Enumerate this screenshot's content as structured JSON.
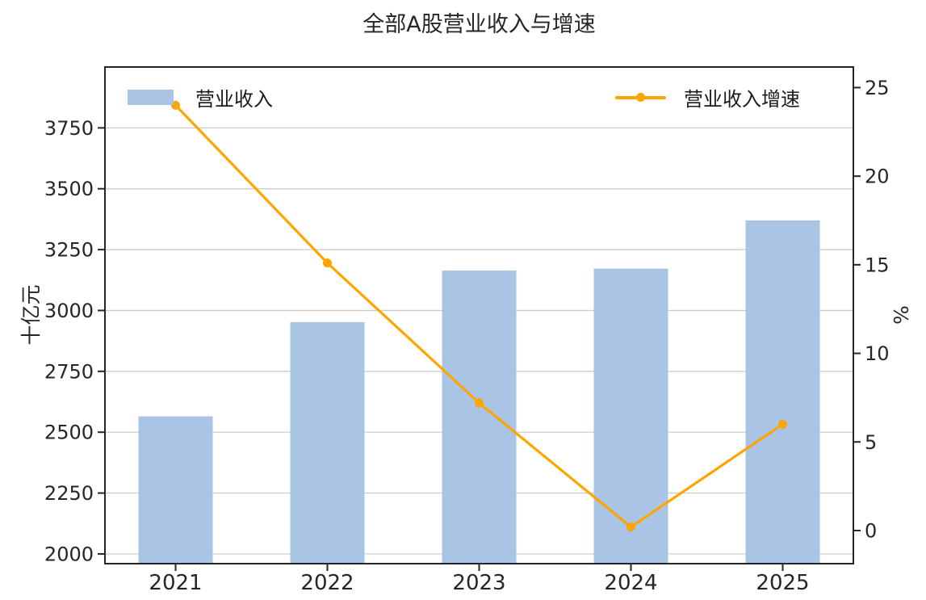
{
  "title": "全部A股营业收入与增速",
  "legend": [
    {
      "label": "营业收入",
      "type": "bar"
    },
    {
      "label": "营业收入增速",
      "type": "line"
    }
  ],
  "chart_data": {
    "type": "bar",
    "title": "全部A股营业收入与增速",
    "categories": [
      "2021",
      "2022",
      "2023",
      "2024",
      "2025"
    ],
    "series": [
      {
        "name": "营业收入",
        "type": "bar",
        "axis": "left",
        "values": [
          2565,
          2952,
          3164,
          3172,
          3370
        ]
      },
      {
        "name": "营业收入增速",
        "type": "line",
        "axis": "right",
        "values": [
          24.0,
          15.1,
          7.2,
          0.2,
          6.0
        ]
      }
    ],
    "left_axis": {
      "label": "十亿元",
      "ticks": [
        2000,
        2250,
        2500,
        2750,
        3000,
        3250,
        3500,
        3750
      ],
      "min": 1960,
      "max": 4000
    },
    "right_axis": {
      "label": "%",
      "ticks": [
        0,
        5,
        10,
        15,
        20,
        25
      ],
      "min": -1.87,
      "max": 26.16
    },
    "grid": "horizontal, left-axis ticks only",
    "legend_position": "upper-left and upper-right inside plot"
  },
  "colors": {
    "bar": "#a9c4e4",
    "line": "#ffa500",
    "grid": "#c9c9c9",
    "spine": "#262626",
    "text": "#262626",
    "background": "#ffffff"
  }
}
